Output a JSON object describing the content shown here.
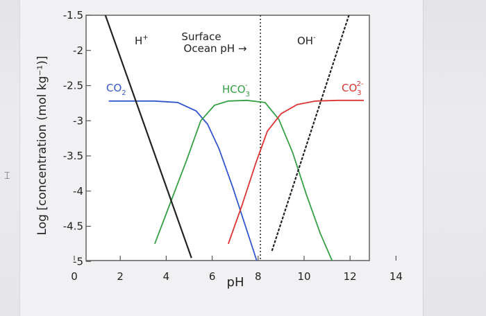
{
  "chart_data": {
    "type": "line",
    "ylabel": "Log [concentration (mol kg⁻¹)]",
    "xlabel": "pH",
    "xlim": [
      0,
      14
    ],
    "ylim": [
      -5,
      -1.5
    ],
    "x_ticks": [
      "0",
      "2",
      "4",
      "6",
      "8",
      "10",
      "12",
      "14"
    ],
    "y_ticks": [
      "-1.5",
      "-2",
      "-2.5",
      "-3",
      "-3.5",
      "-4",
      "-4.5",
      "-5"
    ],
    "grid": false,
    "reference_line": {
      "x": 8.1,
      "style": "dotted",
      "label_line1": "Surface",
      "label_line2": "Ocean pH →"
    },
    "series": [
      {
        "name": "CO2",
        "color": "#3355cc",
        "label": "CO",
        "label_sub": "2",
        "points": [
          [
            1.5,
            -2.72
          ],
          [
            3.5,
            -2.72
          ],
          [
            4.5,
            -2.74
          ],
          [
            5.3,
            -2.86
          ],
          [
            5.8,
            -3.05
          ],
          [
            6.3,
            -3.4
          ],
          [
            6.9,
            -3.95
          ],
          [
            7.5,
            -4.55
          ],
          [
            8.0,
            -5.05
          ]
        ]
      },
      {
        "name": "HCO3-",
        "color": "#33a044",
        "label": "HCO",
        "label_sub": "3",
        "label_sup": "-",
        "points": [
          [
            3.5,
            -4.75
          ],
          [
            4.2,
            -4.15
          ],
          [
            4.9,
            -3.55
          ],
          [
            5.5,
            -3.0
          ],
          [
            6.1,
            -2.78
          ],
          [
            6.7,
            -2.72
          ],
          [
            7.5,
            -2.71
          ],
          [
            8.3,
            -2.74
          ],
          [
            8.9,
            -2.98
          ],
          [
            9.5,
            -3.45
          ],
          [
            10.1,
            -4.05
          ],
          [
            10.7,
            -4.6
          ],
          [
            11.3,
            -5.05
          ]
        ]
      },
      {
        "name": "CO3 2-",
        "color": "#dd3333",
        "label": "CO",
        "label_sub": "3",
        "label_sup": "2-",
        "points": [
          [
            6.7,
            -4.75
          ],
          [
            7.3,
            -4.2
          ],
          [
            7.9,
            -3.6
          ],
          [
            8.4,
            -3.15
          ],
          [
            9.0,
            -2.9
          ],
          [
            9.7,
            -2.77
          ],
          [
            10.5,
            -2.72
          ],
          [
            11.5,
            -2.71
          ],
          [
            12.6,
            -2.71
          ]
        ]
      },
      {
        "name": "H+",
        "color": "#222222",
        "label": "H",
        "label_sup": "+",
        "style": "solid",
        "points": [
          [
            1.3,
            -1.45
          ],
          [
            5.1,
            -4.95
          ]
        ]
      },
      {
        "name": "OH-",
        "color": "#222222",
        "label": "OH",
        "label_sup": "-",
        "style": "dashed",
        "points": [
          [
            8.6,
            -4.85
          ],
          [
            12.0,
            -1.45
          ]
        ]
      }
    ]
  }
}
